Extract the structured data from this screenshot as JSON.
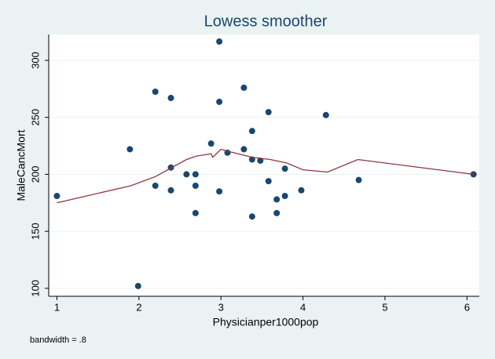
{
  "chart_data": {
    "type": "scatter",
    "title": "Lowess smoother",
    "x_label": "Physicianper1000pop",
    "y_label": "MaleCancMort",
    "note": "bandwidth = .8",
    "xlim": [
      0.9,
      6.15
    ],
    "ylim": [
      93,
      322.7
    ],
    "xticks": [
      1,
      2,
      3,
      4,
      5,
      6
    ],
    "yticks": [
      100,
      150,
      200,
      250,
      300
    ],
    "grid": true,
    "series": [
      {
        "type": "scatter",
        "color": "#1a476f",
        "x": [
          1.0,
          1.89,
          1.99,
          2.2,
          2.2,
          2.39,
          2.39,
          2.39,
          2.58,
          2.69,
          2.69,
          2.69,
          2.88,
          2.98,
          2.98,
          2.98,
          3.08,
          3.28,
          3.28,
          3.38,
          3.38,
          3.38,
          3.48,
          3.58,
          3.58,
          3.68,
          3.68,
          3.78,
          3.78,
          3.98,
          4.28,
          4.68,
          6.08
        ],
        "values": [
          181,
          222,
          102,
          272.5,
          190,
          267,
          206,
          186,
          200,
          200,
          190,
          166,
          227,
          316.5,
          263.6,
          185,
          219,
          276,
          222,
          238,
          213,
          163,
          212,
          254.6,
          194,
          178,
          166,
          205,
          181,
          186,
          252,
          195,
          200
        ]
      },
      {
        "type": "line",
        "color": "#90353b",
        "x": [
          1.0,
          1.9,
          2.2,
          2.58,
          2.7,
          2.88,
          2.9,
          3.0,
          3.1,
          3.38,
          3.6,
          3.8,
          4.0,
          4.3,
          4.67,
          6.08
        ],
        "values": [
          175,
          190,
          198,
          213,
          216,
          218,
          215,
          222,
          220,
          215,
          213,
          210,
          204,
          202,
          213,
          200
        ]
      }
    ]
  }
}
